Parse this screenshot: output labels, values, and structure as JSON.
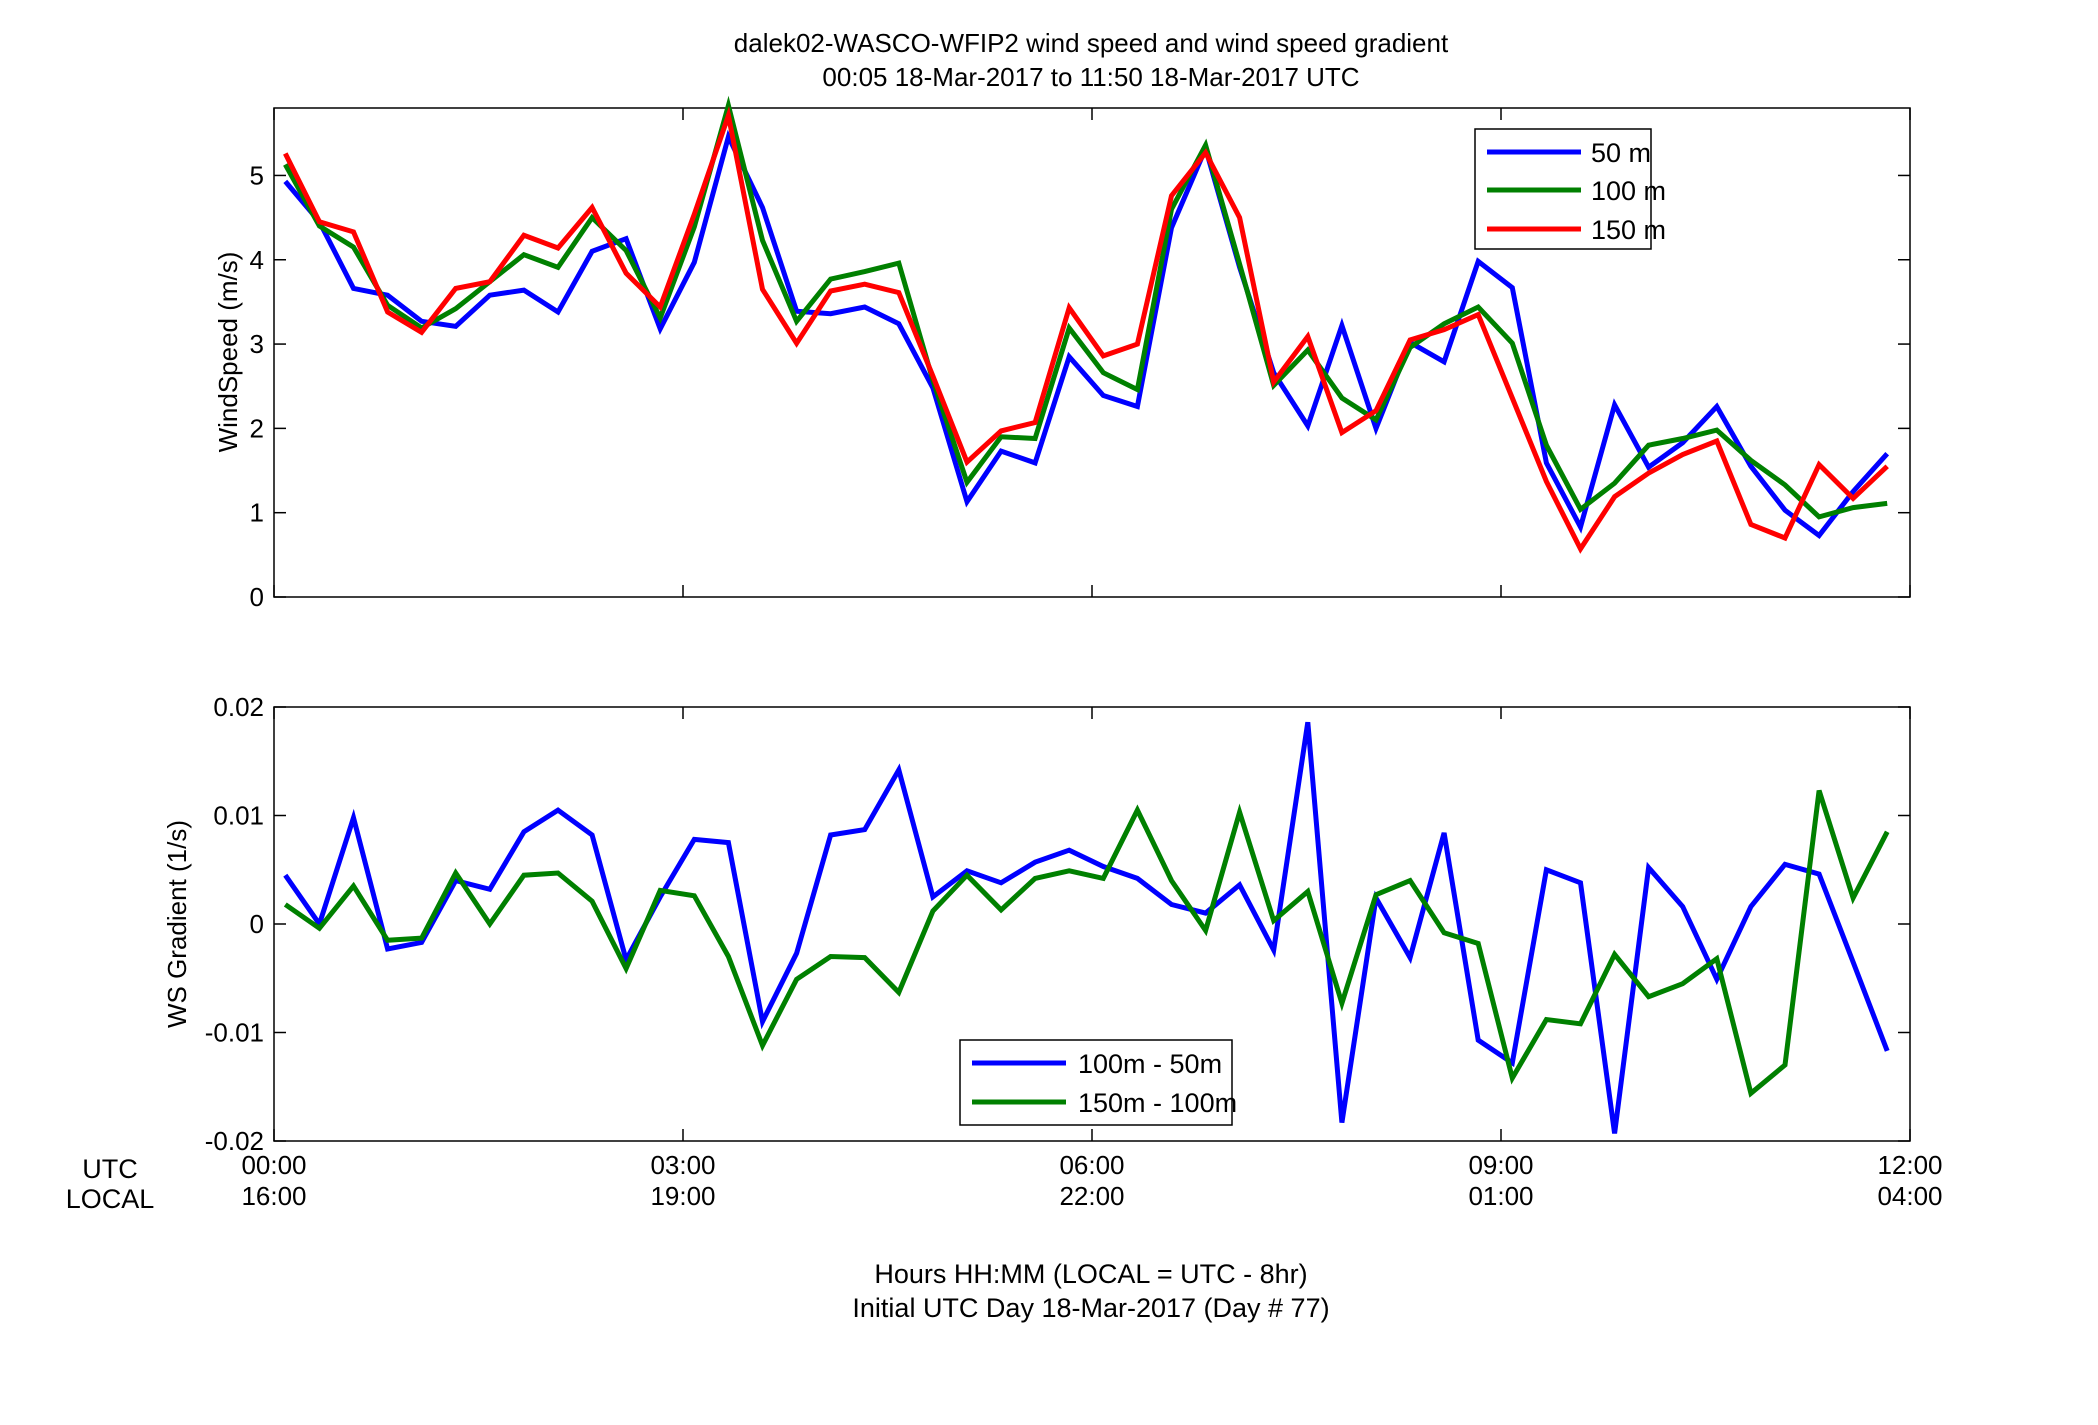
{
  "title": "dalek02-WASCO-WFIP2  wind speed and wind speed gradient",
  "subtitle": "00:05 18-Mar-2017 to 11:50 18-Mar-2017  UTC",
  "xlabel_line1": "Hours HH:MM  (LOCAL = UTC - 8hr)",
  "xlabel_line2": "Initial UTC Day 18-Mar-2017 (Day # 77)",
  "row_labels": {
    "utc": "UTC",
    "local": "LOCAL"
  },
  "x_ticks_utc": [
    "00:00",
    "03:00",
    "06:00",
    "09:00",
    "12:00"
  ],
  "x_ticks_local": [
    "16:00",
    "19:00",
    "22:00",
    "01:00",
    "04:00"
  ],
  "chart_data": [
    {
      "type": "line",
      "ylabel": "WindSpeed (m/s)",
      "ylim": [
        0,
        5.8
      ],
      "xlim": [
        0,
        12
      ],
      "yticks": [
        0,
        1,
        2,
        3,
        4,
        5
      ],
      "legend_position": "top-right",
      "x": [
        0.083,
        0.333,
        0.583,
        0.833,
        1.083,
        1.333,
        1.583,
        1.833,
        2.083,
        2.333,
        2.583,
        2.833,
        3.083,
        3.333,
        3.583,
        3.833,
        4.083,
        4.333,
        4.583,
        4.833,
        5.083,
        5.333,
        5.583,
        5.833,
        6.083,
        6.333,
        6.583,
        6.833,
        7.083,
        7.333,
        7.583,
        7.833,
        8.083,
        8.333,
        8.583,
        8.833,
        9.083,
        9.333,
        9.583,
        9.833,
        10.083,
        10.333,
        10.583,
        10.833,
        11.083,
        11.333,
        11.583,
        11.833
      ],
      "series": [
        {
          "name": "50 m",
          "color": "#0000ff",
          "values": [
            4.93,
            4.45,
            3.66,
            3.58,
            3.27,
            3.21,
            3.58,
            3.64,
            3.38,
            4.1,
            4.25,
            3.18,
            3.97,
            5.46,
            4.62,
            3.39,
            3.36,
            3.44,
            3.24,
            2.48,
            1.13,
            1.73,
            1.59,
            2.85,
            2.39,
            2.26,
            4.38,
            5.32,
            3.91,
            2.66,
            2.03,
            3.22,
            2.0,
            3.02,
            2.79,
            3.98,
            3.67,
            1.59,
            0.83,
            2.28,
            1.54,
            1.83,
            2.26,
            1.55,
            1.03,
            0.73,
            1.25,
            1.7
          ]
        },
        {
          "name": "100 m",
          "color": "#008000",
          "values": [
            5.13,
            4.4,
            4.15,
            3.46,
            3.19,
            3.42,
            3.74,
            4.06,
            3.91,
            4.5,
            4.11,
            3.31,
            4.39,
            5.83,
            4.23,
            3.27,
            3.77,
            3.86,
            3.96,
            2.57,
            1.36,
            1.9,
            1.88,
            3.19,
            2.66,
            2.46,
            4.6,
            5.36,
            3.95,
            2.51,
            2.93,
            2.36,
            2.1,
            2.96,
            3.24,
            3.44,
            3.01,
            1.8,
            1.04,
            1.35,
            1.8,
            1.88,
            1.98,
            1.62,
            1.33,
            0.95,
            1.06,
            1.11
          ]
        },
        {
          "name": "150 m",
          "color": "#ff0000",
          "values": [
            5.26,
            4.45,
            4.33,
            3.38,
            3.14,
            3.66,
            3.74,
            4.29,
            4.14,
            4.62,
            3.84,
            3.44,
            4.54,
            5.71,
            3.65,
            3.01,
            3.63,
            3.71,
            3.61,
            2.62,
            1.6,
            1.97,
            2.07,
            3.43,
            2.86,
            3.0,
            4.76,
            5.27,
            4.5,
            2.55,
            3.09,
            1.95,
            2.21,
            3.05,
            3.17,
            3.35,
            2.36,
            1.37,
            0.57,
            1.19,
            1.47,
            1.69,
            1.85,
            0.86,
            0.7,
            1.57,
            1.17,
            1.55
          ]
        }
      ]
    },
    {
      "type": "line",
      "ylabel": "WS Gradient (1/s)",
      "ylim": [
        -0.02,
        0.02
      ],
      "xlim": [
        0,
        12
      ],
      "yticks": [
        -0.02,
        -0.01,
        0,
        0.01,
        0.02
      ],
      "ytick_labels": [
        "-0.02",
        "-0.01",
        "0",
        "0.01",
        "0.02"
      ],
      "legend_position": "bottom-center",
      "x": [
        0.083,
        0.333,
        0.583,
        0.833,
        1.083,
        1.333,
        1.583,
        1.833,
        2.083,
        2.333,
        2.583,
        2.833,
        3.083,
        3.333,
        3.583,
        3.833,
        4.083,
        4.333,
        4.583,
        4.833,
        5.083,
        5.333,
        5.583,
        5.833,
        6.083,
        6.333,
        6.583,
        6.833,
        7.083,
        7.333,
        7.583,
        7.833,
        8.083,
        8.333,
        8.583,
        8.833,
        9.083,
        9.333,
        9.583,
        9.833,
        10.083,
        10.333,
        10.583,
        10.833,
        11.083,
        11.333,
        11.583,
        11.833
      ],
      "series": [
        {
          "name": "100m - 50m",
          "color": "#0000ff",
          "values": [
            0.0045,
            0.0,
            0.0098,
            -0.0023,
            -0.0017,
            0.004,
            0.0032,
            0.0085,
            0.0105,
            0.0082,
            -0.0033,
            0.0025,
            0.0078,
            0.0075,
            -0.009,
            -0.0027,
            0.0082,
            0.0087,
            0.0142,
            0.0025,
            0.0049,
            0.0038,
            0.0057,
            0.0068,
            0.0053,
            0.0042,
            0.0018,
            0.001,
            0.0036,
            -0.0024,
            0.0186,
            -0.0183,
            0.0024,
            -0.0031,
            0.0084,
            -0.0107,
            -0.0128,
            0.005,
            0.0038,
            -0.0193,
            0.0052,
            0.0016,
            -0.0051,
            0.0016,
            0.0055,
            0.0046,
            -0.0035,
            -0.0117
          ]
        },
        {
          "name": "150m - 100m",
          "color": "#008000",
          "values": [
            0.0018,
            -0.0004,
            0.0035,
            -0.0015,
            -0.0013,
            0.0047,
            0.0,
            0.0045,
            0.0047,
            0.0021,
            -0.0041,
            0.0031,
            0.0026,
            -0.003,
            -0.0112,
            -0.0051,
            -0.003,
            -0.0031,
            -0.0063,
            0.0012,
            0.0045,
            0.0013,
            0.0042,
            0.0049,
            0.0042,
            0.0105,
            0.004,
            -0.0006,
            0.0103,
            0.0003,
            0.003,
            -0.0073,
            0.0027,
            0.004,
            -0.0008,
            -0.0018,
            -0.0142,
            -0.0088,
            -0.0092,
            -0.0028,
            -0.0067,
            -0.0055,
            -0.0032,
            -0.0156,
            -0.013,
            0.0123,
            0.0024,
            0.0085
          ]
        }
      ]
    }
  ]
}
